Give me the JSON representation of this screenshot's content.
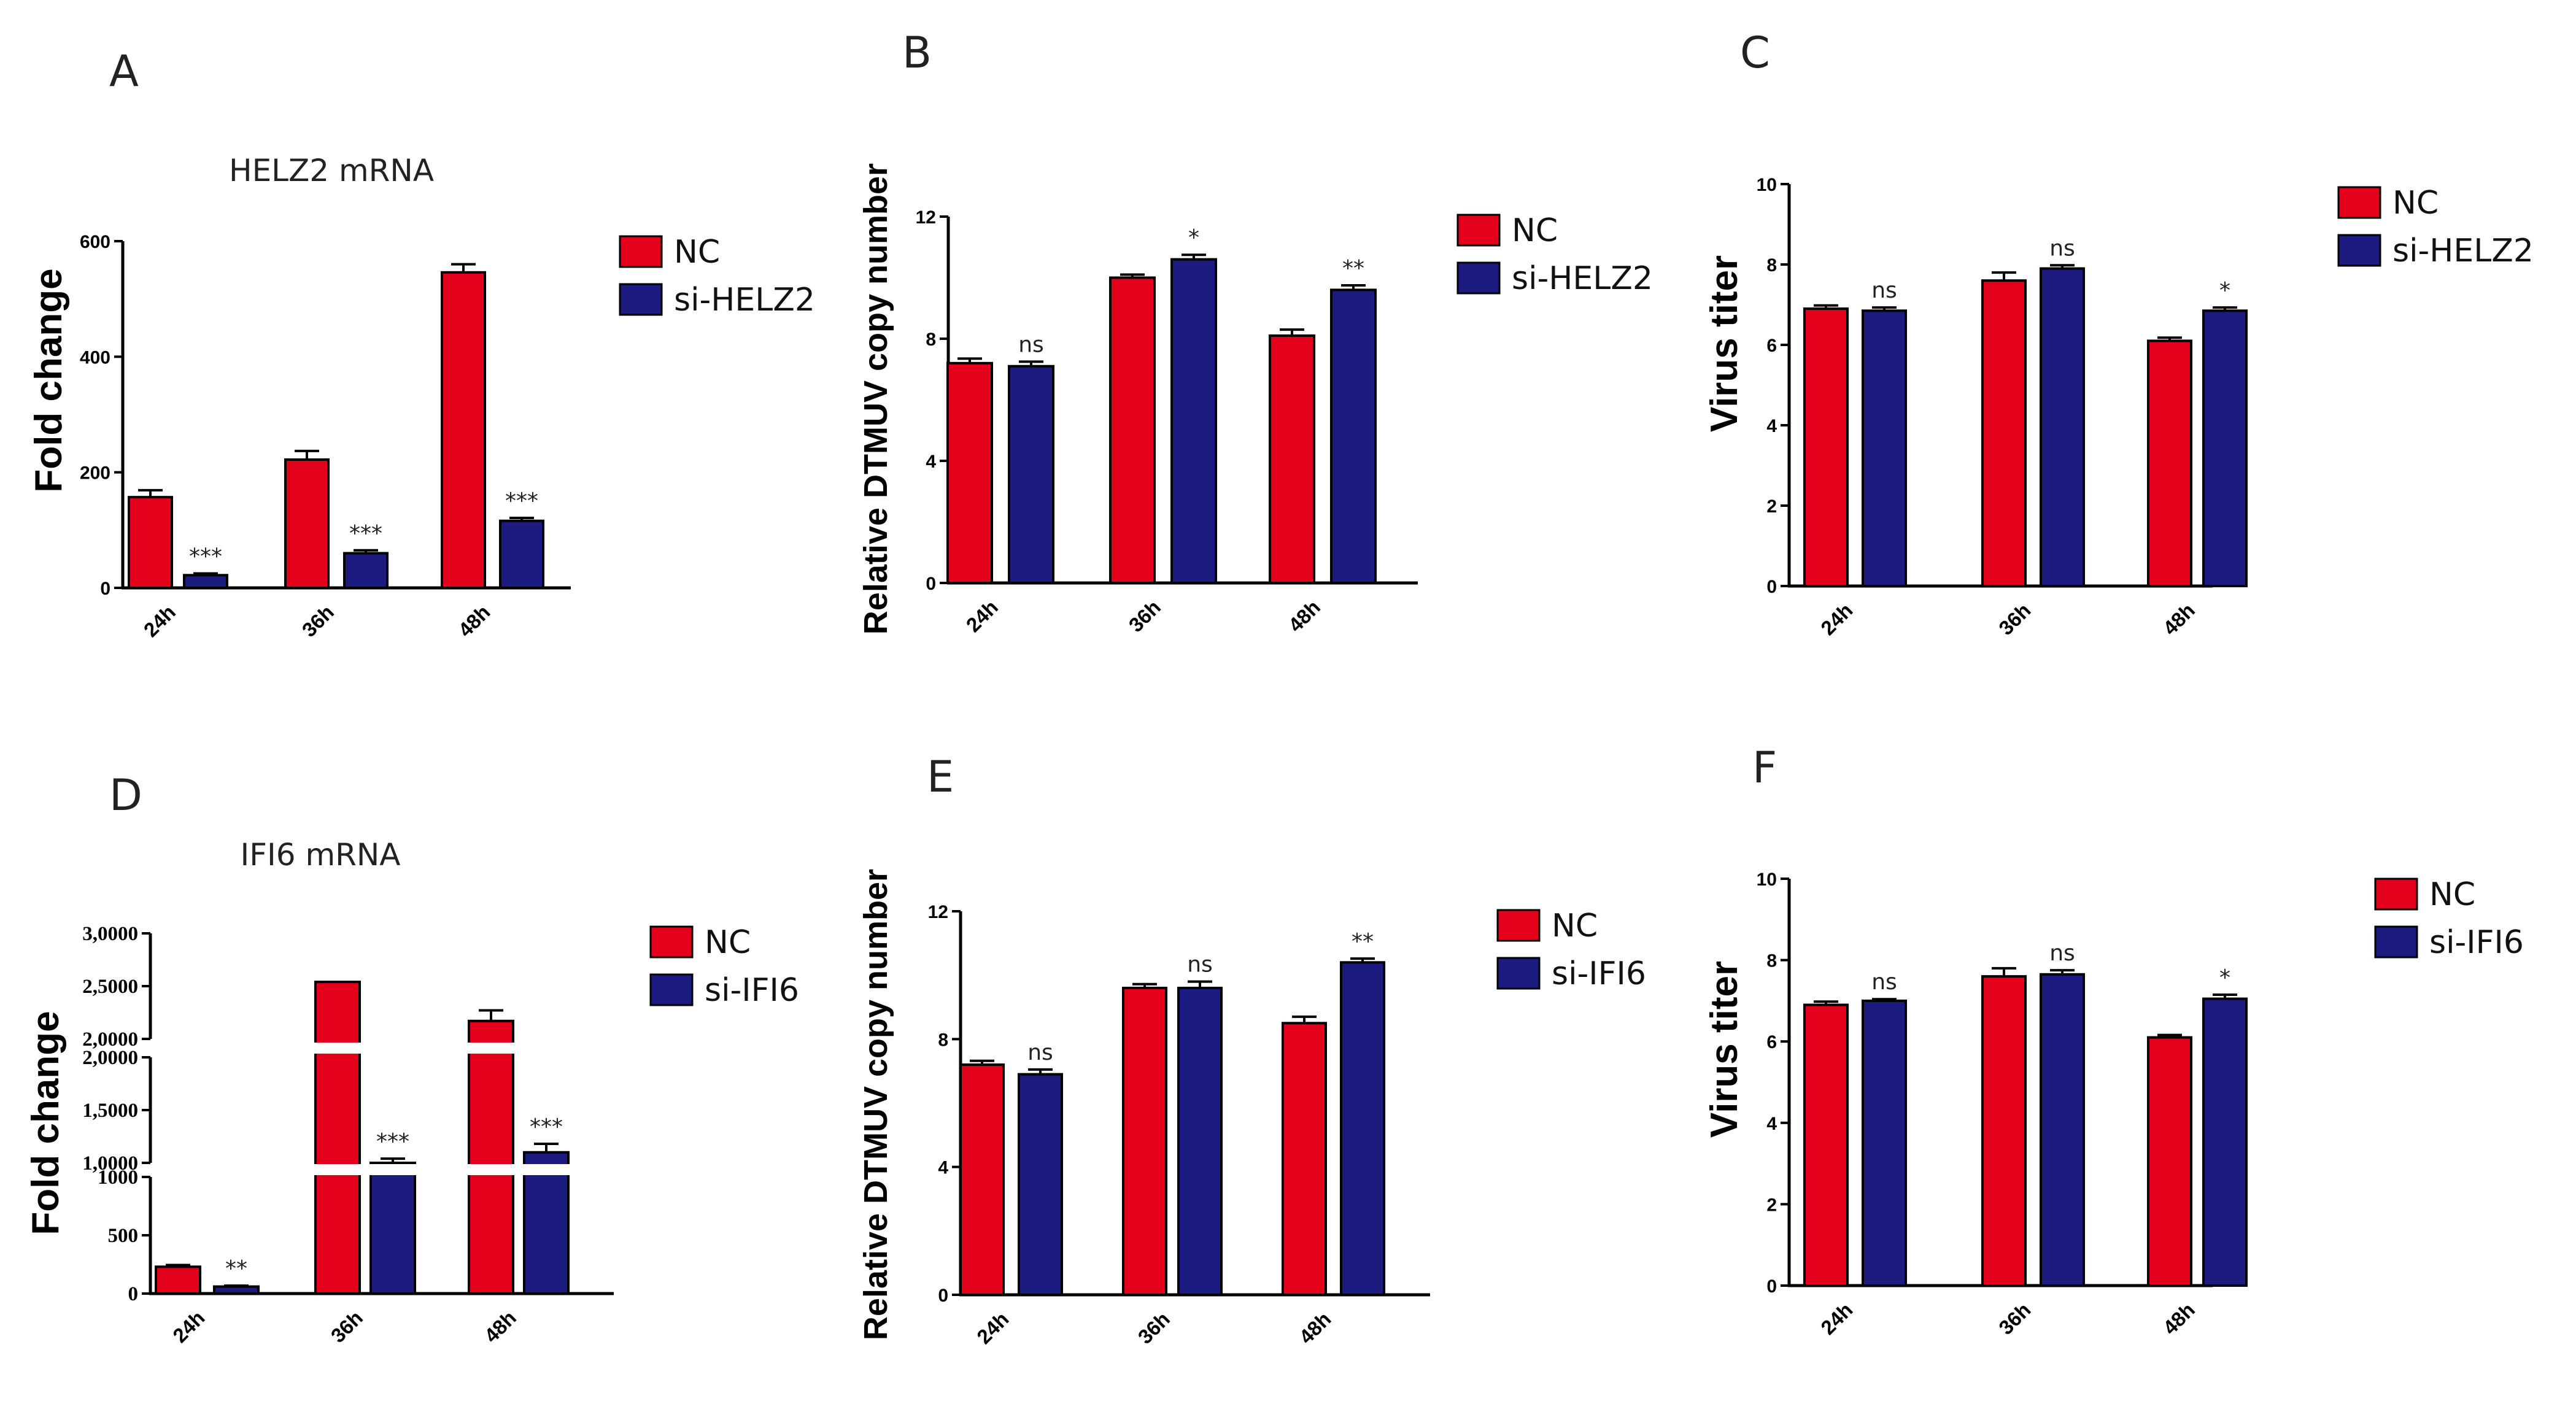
{
  "colors": {
    "nc": "#e3001b",
    "si": "#1c1c80"
  },
  "chart_data": [
    {
      "panel": "A",
      "type": "bar",
      "title": "HELZ2 mRNA",
      "ylabel": "Fold change",
      "xlabel": "",
      "categories": [
        "24h",
        "36h",
        "48h"
      ],
      "series": [
        {
          "name": "NC",
          "values": [
            157,
            222,
            546
          ],
          "errors": [
            12,
            15,
            14
          ]
        },
        {
          "name": "si-HELZ2",
          "values": [
            22,
            60,
            116
          ],
          "errors": [
            3,
            5,
            5
          ]
        }
      ],
      "significance": [
        "***",
        "***",
        "***"
      ],
      "ylim": [
        0,
        600
      ],
      "yticks": [
        0,
        200,
        400,
        600
      ],
      "ytick_labels": [
        "0",
        "200",
        "400",
        "600"
      ],
      "legend": "right"
    },
    {
      "panel": "B",
      "type": "bar",
      "title": "",
      "ylabel": "Relative DTMUV copy number",
      "xlabel": "",
      "categories": [
        "24h",
        "36h",
        "48h"
      ],
      "series": [
        {
          "name": "NC",
          "values": [
            7.2,
            10.0,
            8.1
          ],
          "errors": [
            0.15,
            0.1,
            0.2
          ]
        },
        {
          "name": "si-HELZ2",
          "values": [
            7.1,
            10.6,
            9.6
          ],
          "errors": [
            0.15,
            0.15,
            0.15
          ]
        }
      ],
      "significance": [
        "ns",
        "*",
        "**"
      ],
      "ylim": [
        0,
        12
      ],
      "yticks": [
        0,
        4,
        8,
        12
      ],
      "ytick_labels": [
        "0",
        "4",
        "8",
        "12"
      ],
      "legend": "right"
    },
    {
      "panel": "C",
      "type": "bar",
      "title": "",
      "ylabel": "Virus titer",
      "xlabel": "",
      "categories": [
        "24h",
        "36h",
        "48h"
      ],
      "series": [
        {
          "name": "NC",
          "values": [
            6.9,
            7.6,
            6.1
          ],
          "errors": [
            0.08,
            0.2,
            0.08
          ]
        },
        {
          "name": "si-HELZ2",
          "values": [
            6.85,
            7.9,
            6.85
          ],
          "errors": [
            0.08,
            0.08,
            0.08
          ]
        }
      ],
      "significance": [
        "ns",
        "ns",
        "*"
      ],
      "ylim": [
        0,
        10
      ],
      "yticks": [
        0,
        2,
        4,
        6,
        8,
        10
      ],
      "ytick_labels": [
        "0",
        "2",
        "4",
        "6",
        "8",
        "10"
      ],
      "legend": "top-right"
    },
    {
      "panel": "D",
      "type": "bar",
      "title": "IFI6 mRNA",
      "ylabel": "Fold change",
      "xlabel": "",
      "categories": [
        "24h",
        "36h",
        "48h"
      ],
      "series": [
        {
          "name": "NC",
          "values": [
            230,
            25400,
            21700
          ],
          "errors": [
            15,
            0,
            1000
          ]
        },
        {
          "name": "si-IFI6",
          "values": [
            60,
            9800,
            11000
          ],
          "errors": [
            8,
            600,
            800
          ]
        }
      ],
      "significance": [
        "**",
        "***",
        "***"
      ],
      "axis_break": "broken y-axis with three segments",
      "ytick_labels": [
        "0",
        "500",
        "1000",
        "1,0000",
        "1,5000",
        "2,0000",
        "2,0000",
        "2,5000",
        "3,0000"
      ],
      "legend": "right"
    },
    {
      "panel": "E",
      "type": "bar",
      "title": "",
      "ylabel": "Relative DTMUV copy number",
      "xlabel": "",
      "categories": [
        "24h",
        "36h",
        "48h"
      ],
      "series": [
        {
          "name": "NC",
          "values": [
            7.2,
            9.6,
            8.5
          ],
          "errors": [
            0.12,
            0.12,
            0.2
          ]
        },
        {
          "name": "si-IFI6",
          "values": [
            6.9,
            9.6,
            10.4
          ],
          "errors": [
            0.15,
            0.2,
            0.12
          ]
        }
      ],
      "significance": [
        "ns",
        "ns",
        "**"
      ],
      "ylim": [
        0,
        12
      ],
      "yticks": [
        0,
        4,
        8,
        12
      ],
      "ytick_labels": [
        "0",
        "4",
        "8",
        "12"
      ],
      "legend": "right"
    },
    {
      "panel": "F",
      "type": "bar",
      "title": "",
      "ylabel": "Virus titer",
      "xlabel": "",
      "categories": [
        "24h",
        "36h",
        "48h"
      ],
      "series": [
        {
          "name": "NC",
          "values": [
            6.9,
            7.6,
            6.1
          ],
          "errors": [
            0.08,
            0.2,
            0.06
          ]
        },
        {
          "name": "si-IFI6",
          "values": [
            7.0,
            7.65,
            7.05
          ],
          "errors": [
            0.04,
            0.1,
            0.1
          ]
        }
      ],
      "significance": [
        "ns",
        "ns",
        "*"
      ],
      "ylim": [
        0,
        10
      ],
      "yticks": [
        0,
        2,
        4,
        6,
        8,
        10
      ],
      "ytick_labels": [
        "0",
        "2",
        "4",
        "6",
        "8",
        "10"
      ],
      "legend": "top-right"
    }
  ]
}
